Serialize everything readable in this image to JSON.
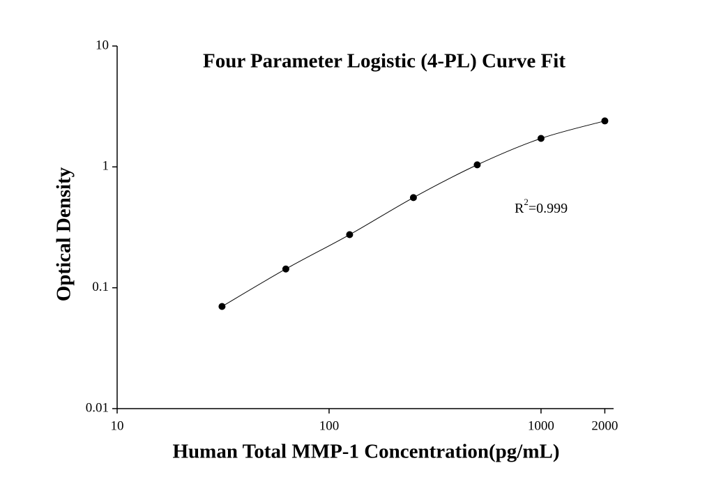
{
  "chart_data": {
    "type": "scatter",
    "title": "Four Parameter Logistic (4-PL) Curve Fit",
    "x_label": "Human Total MMP-1 Concentration(pg/mL)",
    "y_label": "Optical Density",
    "x": [
      31.25,
      62.5,
      125,
      250,
      500,
      1000,
      2000
    ],
    "series": [
      {
        "color": "#000000",
        "values": [
          0.07,
          0.143,
          0.275,
          0.557,
          1.04,
          1.72,
          2.4
        ]
      }
    ],
    "fit_curve": true,
    "xscale": "log",
    "yscale": "log",
    "xlim": [
      10,
      2200
    ],
    "ylim": [
      0.01,
      10
    ],
    "xticks": [
      10,
      100,
      1000,
      2000
    ],
    "yticks": [
      0.01,
      0.1,
      1,
      10
    ],
    "annotation": [
      "R",
      "2",
      "=0.999"
    ]
  }
}
